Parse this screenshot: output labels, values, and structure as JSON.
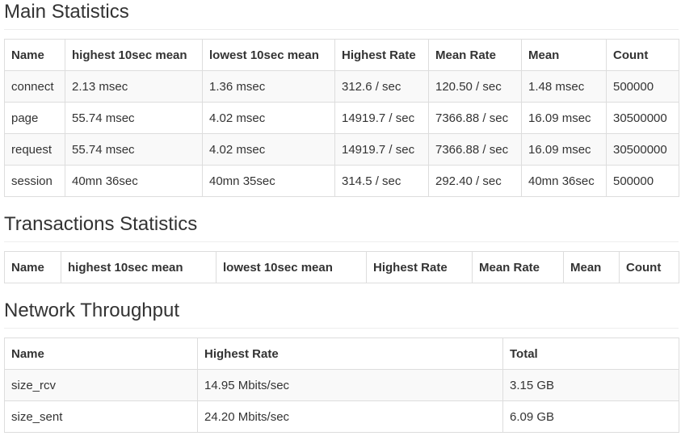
{
  "main_statistics": {
    "title": "Main Statistics",
    "columns": [
      "Name",
      "highest 10sec mean",
      "lowest 10sec mean",
      "Highest Rate",
      "Mean Rate",
      "Mean",
      "Count"
    ],
    "rows": [
      [
        "connect",
        "2.13 msec",
        "1.36 msec",
        "312.6 / sec",
        "120.50 / sec",
        "1.48 msec",
        "500000"
      ],
      [
        "page",
        "55.74 msec",
        "4.02 msec",
        "14919.7 / sec",
        "7366.88 / sec",
        "16.09 msec",
        "30500000"
      ],
      [
        "request",
        "55.74 msec",
        "4.02 msec",
        "14919.7 / sec",
        "7366.88 / sec",
        "16.09 msec",
        "30500000"
      ],
      [
        "session",
        "40mn 36sec",
        "40mn 35sec",
        "314.5 / sec",
        "292.40 / sec",
        "40mn 36sec",
        "500000"
      ]
    ]
  },
  "transactions_statistics": {
    "title": "Transactions Statistics",
    "columns": [
      "Name",
      "highest 10sec mean",
      "lowest 10sec mean",
      "Highest Rate",
      "Mean Rate",
      "Mean",
      "Count"
    ]
  },
  "network_throughput": {
    "title": "Network Throughput",
    "columns": [
      "Name",
      "Highest Rate",
      "Total"
    ],
    "rows": [
      [
        "size_rcv",
        "14.95 Mbits/sec",
        "3.15 GB"
      ],
      [
        "size_sent",
        "24.20 Mbits/sec",
        "6.09 GB"
      ]
    ]
  }
}
